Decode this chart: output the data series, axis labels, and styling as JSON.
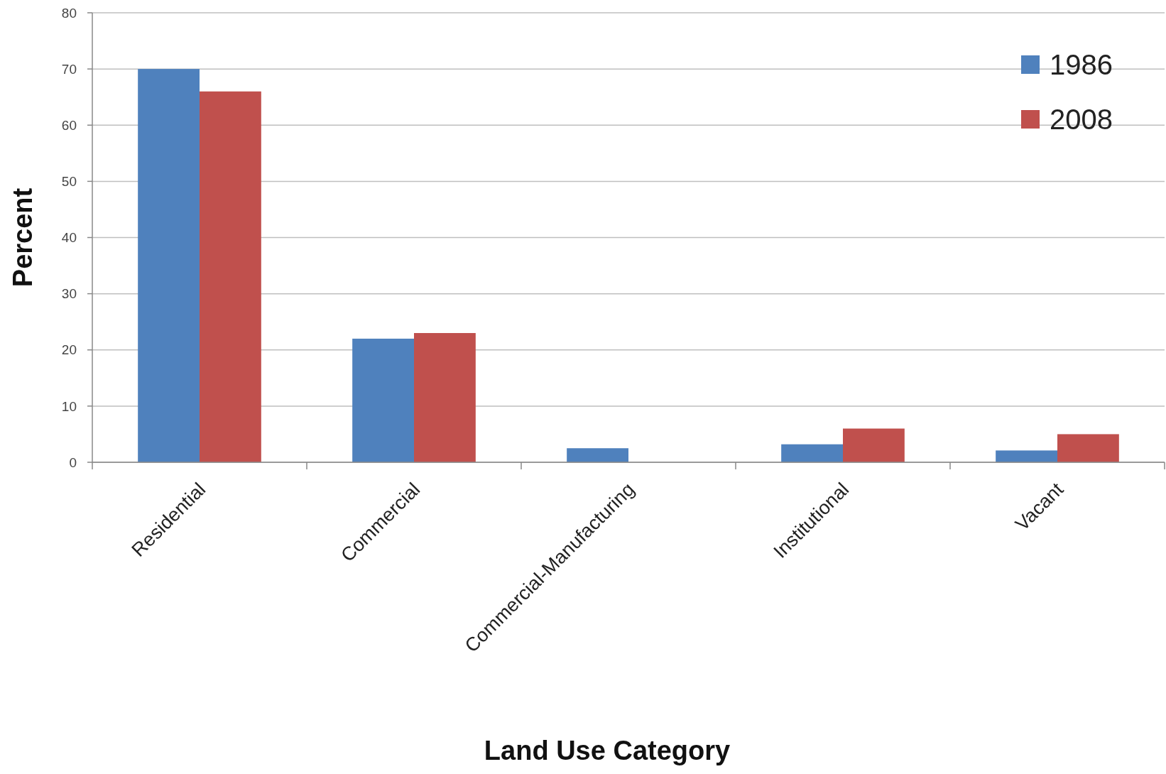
{
  "chart_data": {
    "type": "bar",
    "xlabel": "Land Use Category",
    "ylabel": "Percent",
    "categories": [
      "Residential",
      "Commercial",
      "Commercial-Manufacturing",
      "Institutional",
      "Vacant"
    ],
    "series": [
      {
        "name": "1986",
        "color": "#4f81bd",
        "values": [
          70,
          22,
          2.5,
          3.2,
          2.1
        ]
      },
      {
        "name": "2008",
        "color": "#c0504d",
        "values": [
          66,
          23,
          0,
          6,
          5
        ]
      }
    ],
    "ylim": [
      0,
      80
    ],
    "yticks": [
      0,
      10,
      20,
      30,
      40,
      50,
      60,
      70,
      80
    ],
    "grid": "y",
    "legend": "top right"
  }
}
